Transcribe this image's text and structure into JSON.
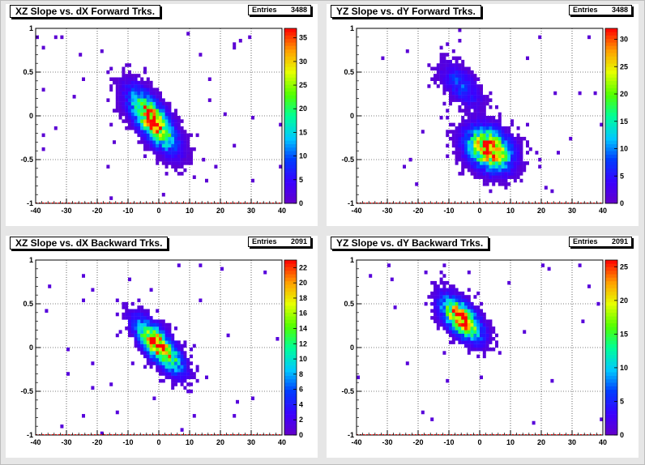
{
  "panels": [
    {
      "id": "xz-fwd",
      "title": "XZ Slope vs. dX Forward Trks.",
      "stats": {
        "label": "Entries",
        "value": "3488"
      },
      "colorbar_ticks": [
        "0",
        "5",
        "10",
        "15",
        "20",
        "25",
        "30",
        "35"
      ]
    },
    {
      "id": "yz-fwd",
      "title": "YZ Slope vs. dY Forward Trks.",
      "stats": {
        "label": "Entries",
        "value": "3488"
      },
      "colorbar_ticks": [
        "0",
        "5",
        "10",
        "15",
        "20",
        "25",
        "30"
      ]
    },
    {
      "id": "xz-bwd",
      "title": "XZ Slope vs. dX Backward Trks.",
      "stats": {
        "label": "Entries",
        "value": "2091"
      },
      "colorbar_ticks": [
        "0",
        "2",
        "4",
        "6",
        "8",
        "10",
        "12",
        "14",
        "16",
        "18",
        "20",
        "22"
      ]
    },
    {
      "id": "yz-bwd",
      "title": "YZ Slope vs. dY Backward Trks.",
      "stats": {
        "label": "Entries",
        "value": "2091"
      },
      "colorbar_ticks": [
        "0",
        "5",
        "10",
        "15",
        "20",
        "25"
      ]
    }
  ],
  "chart_data": [
    {
      "type": "heatmap",
      "title": "XZ Slope vs. dX Forward Trks.",
      "entries": 3488,
      "xlim": [
        -40,
        40
      ],
      "ylim": [
        -1,
        1
      ],
      "xticks": [
        -40,
        -30,
        -20,
        -10,
        0,
        10,
        20,
        30,
        40
      ],
      "yticks": [
        -1,
        -0.5,
        0,
        0.5,
        1
      ],
      "zlim": [
        0,
        37
      ],
      "zticks": [
        0,
        5,
        10,
        15,
        20,
        25,
        30,
        35
      ],
      "grid": true,
      "cluster": {
        "center": [
          -2,
          -0.05
        ],
        "sx": 4.5,
        "sy": 0.2,
        "rho": -0.7,
        "peak": 37
      }
    },
    {
      "type": "heatmap",
      "title": "YZ Slope vs. dY Forward Trks.",
      "entries": 3488,
      "xlim": [
        -40,
        40
      ],
      "ylim": [
        -1,
        1
      ],
      "xticks": [
        -40,
        -30,
        -20,
        -10,
        0,
        10,
        20,
        30,
        40
      ],
      "yticks": [
        -1,
        -0.5,
        0,
        0.5,
        1
      ],
      "zlim": [
        0,
        32
      ],
      "zticks": [
        0,
        5,
        10,
        15,
        20,
        25,
        30
      ],
      "grid": true,
      "cluster": {
        "center": [
          3,
          -0.38
        ],
        "sx": 4.5,
        "sy": 0.15,
        "rho": -0.3,
        "peak": 32
      },
      "secondary_cluster": {
        "center": [
          -6,
          0.35
        ],
        "sx": 4,
        "sy": 0.15,
        "rho": -0.6,
        "peak": 8
      }
    },
    {
      "type": "heatmap",
      "title": "XZ Slope vs. dX Backward Trks.",
      "entries": 2091,
      "xlim": [
        -40,
        40
      ],
      "ylim": [
        -1,
        1
      ],
      "xticks": [
        -40,
        -30,
        -20,
        -10,
        0,
        10,
        20,
        30,
        40
      ],
      "yticks": [
        -1,
        -0.5,
        0,
        0.5,
        1
      ],
      "zlim": [
        0,
        23
      ],
      "zticks": [
        0,
        2,
        4,
        6,
        8,
        10,
        12,
        14,
        16,
        18,
        20,
        22
      ],
      "grid": true,
      "cluster": {
        "center": [
          0,
          0.02
        ],
        "sx": 4.5,
        "sy": 0.18,
        "rho": -0.75,
        "peak": 23
      }
    },
    {
      "type": "heatmap",
      "title": "YZ Slope vs. dY Backward Trks.",
      "entries": 2091,
      "xlim": [
        -40,
        40
      ],
      "ylim": [
        -1,
        1
      ],
      "xticks": [
        -40,
        -30,
        -20,
        -10,
        0,
        10,
        20,
        30,
        40
      ],
      "yticks": [
        -1,
        -0.5,
        0,
        0.5,
        1
      ],
      "zlim": [
        0,
        26
      ],
      "zticks": [
        0,
        5,
        10,
        15,
        20,
        25
      ],
      "grid": true,
      "cluster": {
        "center": [
          -6,
          0.33
        ],
        "sx": 4,
        "sy": 0.15,
        "rho": -0.6,
        "peak": 26
      }
    }
  ]
}
